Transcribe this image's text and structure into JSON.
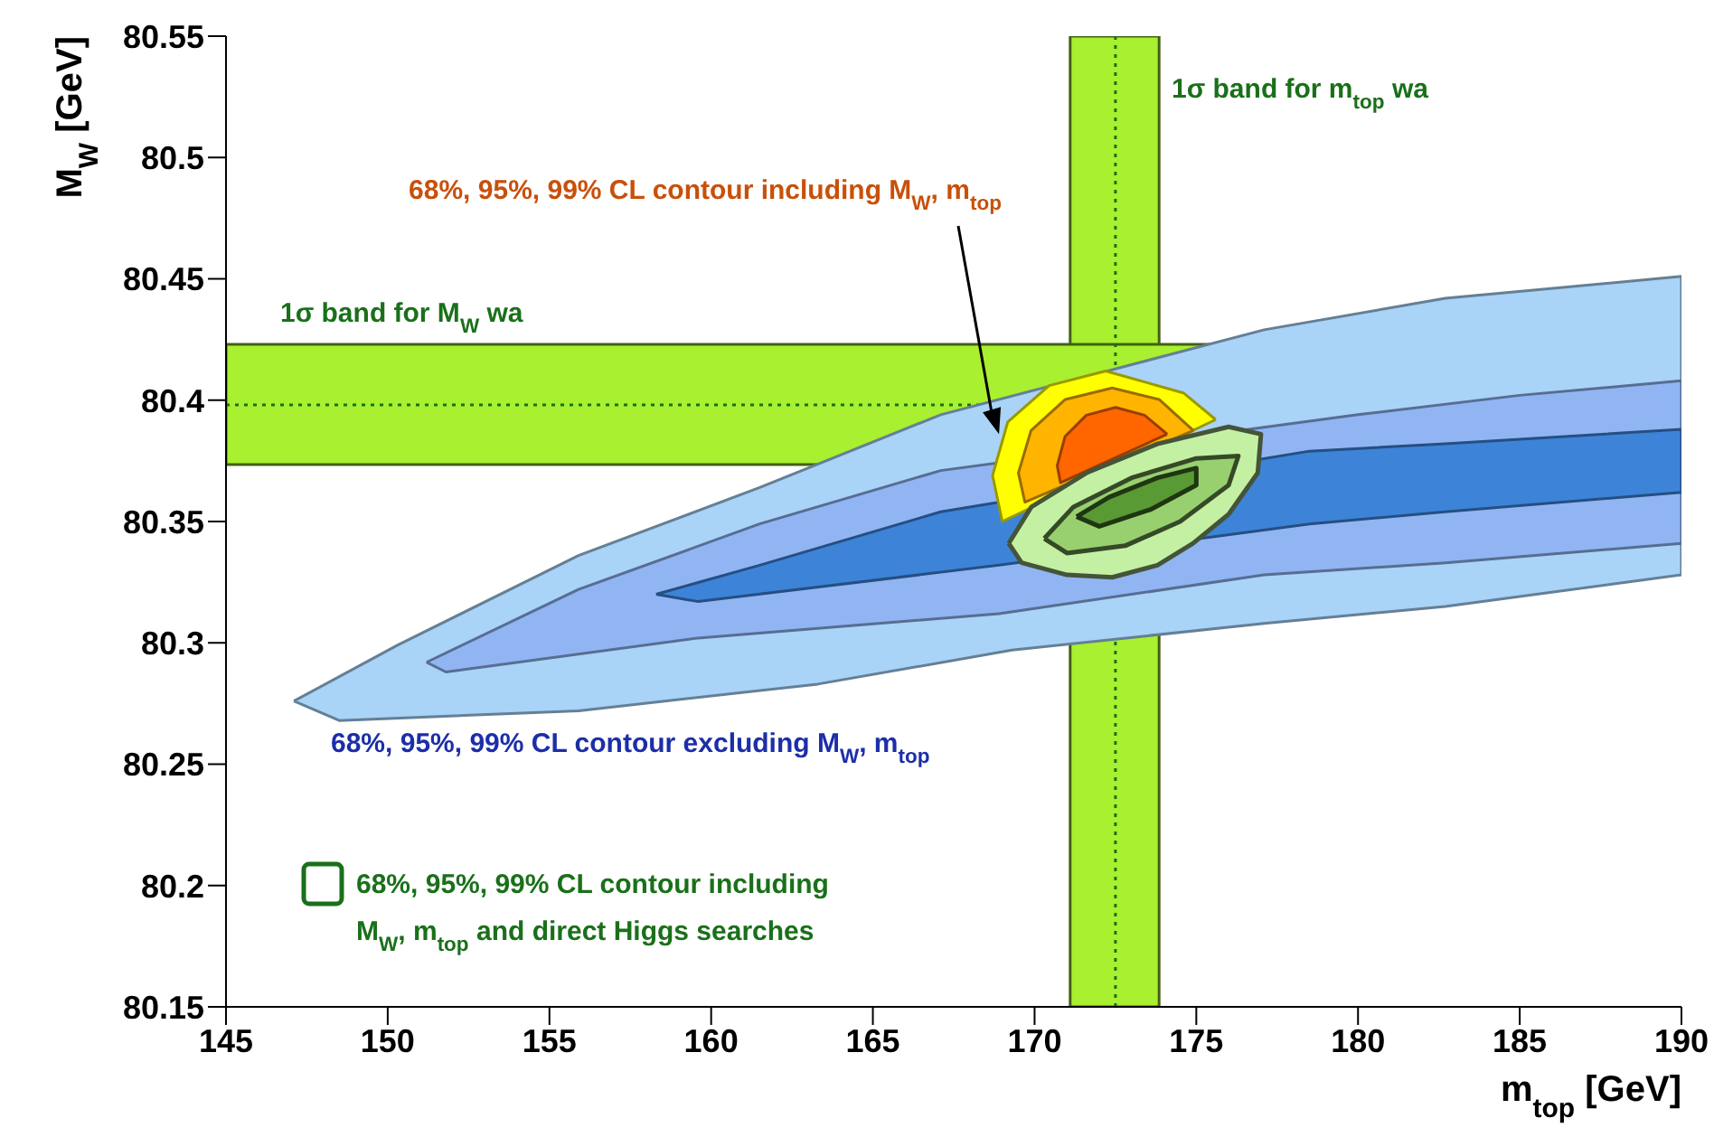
{
  "chart_data": {
    "type": "area",
    "xlabel": "m$_{top}$ [GeV]",
    "ylabel": "M$_{W}$ [GeV]",
    "xlim": [
      145,
      190
    ],
    "xticks": [
      145,
      150,
      155,
      160,
      165,
      170,
      175,
      180,
      185,
      190
    ],
    "ylim": [
      80.15,
      80.55
    ],
    "yticks": [
      80.15,
      80.2,
      80.25,
      80.3,
      80.35,
      80.4,
      80.45,
      80.5,
      80.55
    ],
    "marker": "none",
    "series": [
      {
        "color": "#a9d3f7",
        "x": [
          147.1,
          150.3,
          155.9,
          161.5,
          167.1,
          177.1,
          182.7,
          190,
          190,
          182.7,
          177.1,
          169.3,
          163.3,
          155.9,
          148.5,
          147.1
        ],
        "values": [
          80.276,
          80.299,
          80.336,
          80.364,
          80.394,
          80.429,
          80.442,
          80.451,
          80.328,
          80.315,
          80.308,
          80.297,
          80.283,
          80.272,
          80.268,
          80.276
        ]
      },
      {
        "color": "#91b5f3",
        "x": [
          151.2,
          155.9,
          161.5,
          167.1,
          180,
          185,
          190,
          190,
          182.7,
          177.1,
          168.9,
          159.6,
          151.8,
          151.2
        ],
        "values": [
          80.292,
          80.322,
          80.349,
          80.371,
          80.394,
          80.402,
          80.408,
          80.341,
          80.333,
          80.328,
          80.312,
          80.302,
          80.288,
          80.292
        ]
      },
      {
        "color": "#3d84d8",
        "x": [
          158.3,
          161.5,
          167.1,
          178.5,
          182.7,
          190,
          190,
          182.7,
          178.5,
          168.9,
          159.6,
          158.3
        ],
        "values": [
          80.32,
          80.332,
          80.354,
          80.379,
          80.382,
          80.388,
          80.362,
          80.354,
          80.349,
          80.332,
          80.317,
          80.32
        ]
      },
      {
        "color": "#ffff00",
        "x": [
          175.6,
          174.6,
          172.2,
          170.45,
          169.17,
          168.7,
          169,
          175.6
        ],
        "values": [
          80.392,
          80.403,
          80.412,
          80.406,
          80.391,
          80.369,
          80.35,
          80.392
        ]
      },
      {
        "color": "#ffb400",
        "x": [
          174.91,
          173.85,
          172.4,
          170.95,
          169.89,
          169.5,
          169.7,
          174.91
        ],
        "values": [
          80.3875,
          80.4003,
          80.405,
          80.4003,
          80.3875,
          80.37,
          80.358,
          80.3875
        ]
      },
      {
        "color": "#ff6600",
        "x": [
          174.1,
          173.4,
          172.5,
          171.6,
          170.94,
          170.7,
          170.8,
          174.1
        ],
        "values": [
          80.386,
          80.3938,
          80.397,
          80.3938,
          80.385,
          80.373,
          80.366,
          80.386
        ]
      },
      {
        "color": "#c4f0a4",
        "x": [
          169.2,
          169.9,
          171.6,
          173.8,
          176,
          177,
          176.9,
          176,
          174.9,
          173.8,
          172.4,
          171,
          169.6,
          169.2
        ],
        "values": [
          80.341,
          80.356,
          80.37,
          80.382,
          80.389,
          80.386,
          80.37,
          80.353,
          80.341,
          80.332,
          80.327,
          80.328,
          80.333,
          80.341
        ]
      },
      {
        "color": "#98d070",
        "x": [
          170.3,
          171.2,
          173,
          175,
          176.3,
          176,
          174.5,
          172.8,
          171,
          170.3
        ],
        "values": [
          80.343,
          80.356,
          80.368,
          80.376,
          80.377,
          80.365,
          80.35,
          80.34,
          80.337,
          80.343
        ]
      },
      {
        "color": "#5a9a34",
        "x": [
          171.3,
          172.3,
          173.8,
          175,
          175,
          173.6,
          172,
          171.3
        ],
        "values": [
          80.352,
          80.36,
          80.368,
          80.372,
          80.365,
          80.355,
          80.348,
          80.352
        ]
      }
    ],
    "bands": [
      {
        "axis": "x",
        "from": 171.1,
        "to": 173.85,
        "color": "#a8f030"
      },
      {
        "axis": "y",
        "from": 80.3735,
        "to": 80.423,
        "color": "#a8f030"
      }
    ],
    "ref_lines": [
      {
        "axis": "x",
        "value": 172.5,
        "color": "#1a701a",
        "line_style": "dotted"
      },
      {
        "axis": "y",
        "value": 80.398,
        "color": "#1a701a",
        "line_style": "dotted"
      }
    ],
    "annotations": [
      "1σ band for M$_{W}$ wa",
      "1σ band for m$_{top}$ wa",
      {
        "text": "68%, 95%, 99% CL contour including M$_{W}$, m$_{top}$",
        "x": 168.9,
        "y": 80.386
      },
      "68%, 95%, 99% CL contour excluding M$_{W}$, m$_{top}$",
      "68%, 95%, 99% CL contour including M$_{W}$, m$_{top}$ and direct Higgs searches"
    ]
  }
}
